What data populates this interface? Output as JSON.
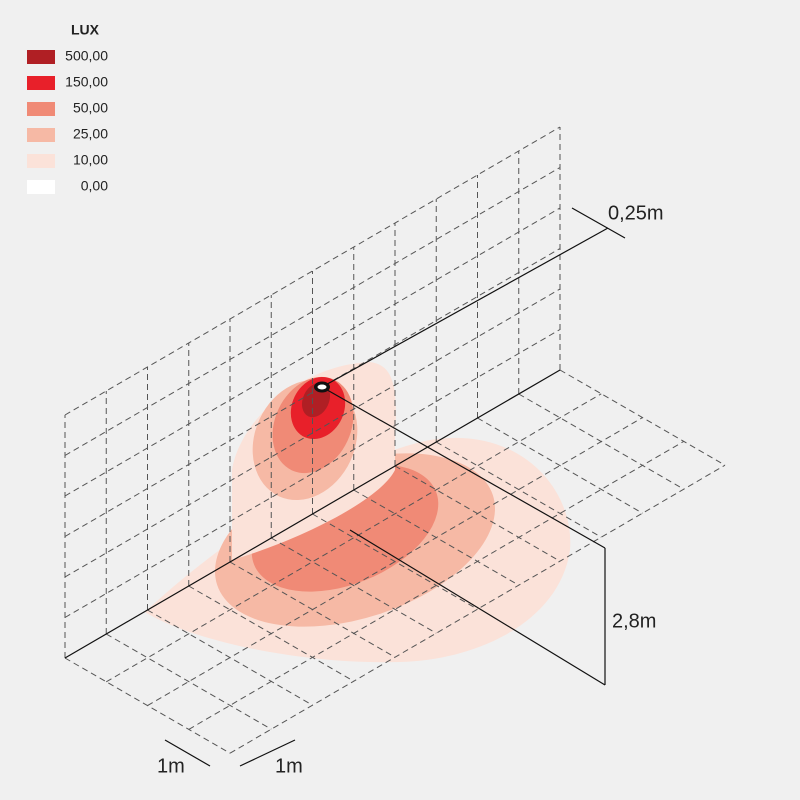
{
  "legend": {
    "title": "LUX",
    "items": [
      {
        "label": "500,00",
        "color": "#b01f24"
      },
      {
        "label": "150,00",
        "color": "#e8202a"
      },
      {
        "label": "50,00",
        "color": "#f08a76"
      },
      {
        "label": "25,00",
        "color": "#f6b9a5"
      },
      {
        "label": "10,00",
        "color": "#fbe2d9"
      },
      {
        "label": "0,00",
        "color": "#ffffff"
      }
    ]
  },
  "dimensions": {
    "offset": "0,25m",
    "height": "2,8m",
    "grid_a": "1m",
    "grid_b": "1m"
  }
}
